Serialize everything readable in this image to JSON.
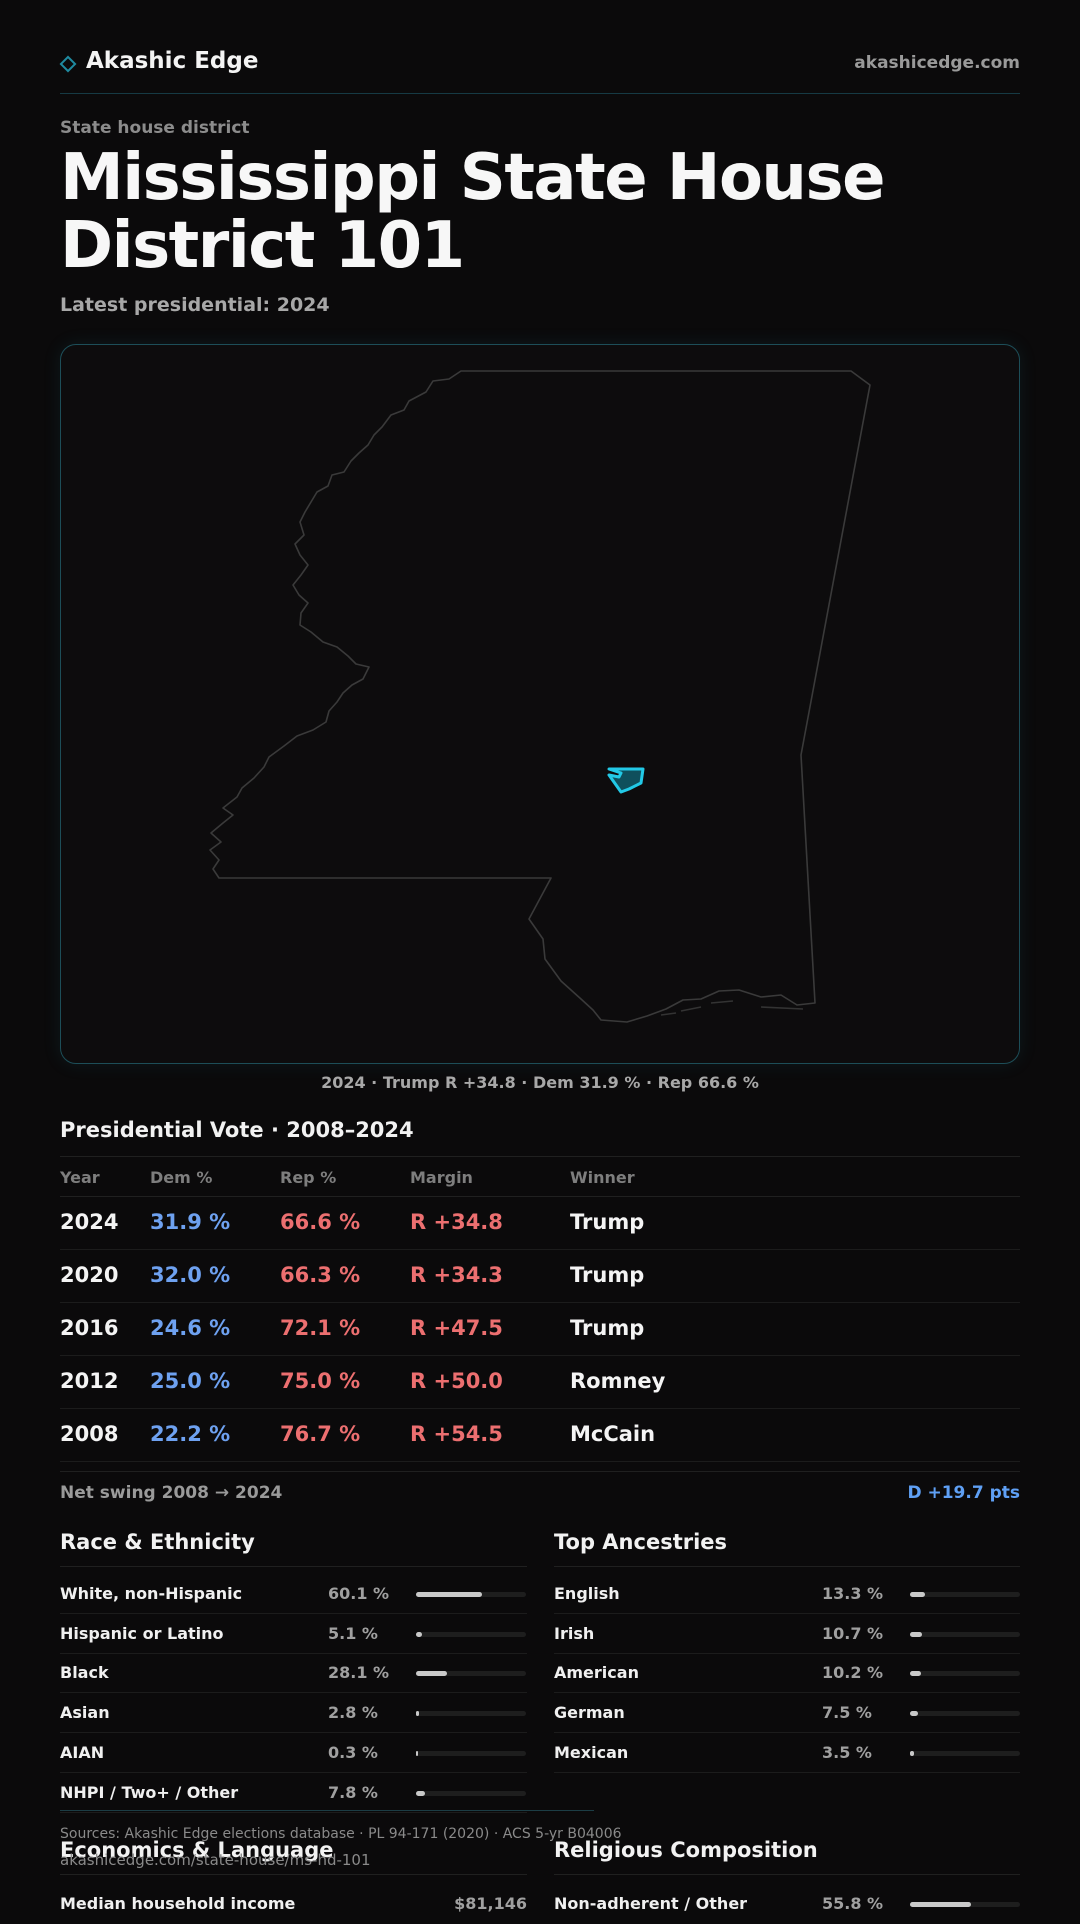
{
  "brand": {
    "name": "Akashic Edge",
    "site": "akashicedge.com"
  },
  "kicker": "State house district",
  "title": "Mississippi State House District 101",
  "subtitle": "Latest presidential: 2024",
  "map_caption": "2024 · Trump R +34.8 · Dem 31.9 % · Rep 66.6 %",
  "vote": {
    "title": "Presidential Vote · 2008–2024",
    "headers": {
      "year": "Year",
      "dem": "Dem %",
      "rep": "Rep %",
      "margin": "Margin",
      "winner": "Winner"
    },
    "rows": [
      {
        "year": "2024",
        "dem": "31.9 %",
        "rep": "66.6 %",
        "margin": "R +34.8",
        "winner": "Trump"
      },
      {
        "year": "2020",
        "dem": "32.0 %",
        "rep": "66.3 %",
        "margin": "R +34.3",
        "winner": "Trump"
      },
      {
        "year": "2016",
        "dem": "24.6 %",
        "rep": "72.1 %",
        "margin": "R +47.5",
        "winner": "Trump"
      },
      {
        "year": "2012",
        "dem": "25.0 %",
        "rep": "75.0 %",
        "margin": "R +50.0",
        "winner": "Romney"
      },
      {
        "year": "2008",
        "dem": "22.2 %",
        "rep": "76.7 %",
        "margin": "R +54.5",
        "winner": "McCain"
      }
    ],
    "swing_label": "Net swing 2008 → 2024",
    "swing_value": "D +19.7 pts"
  },
  "race": {
    "title": "Race & Ethnicity",
    "rows": [
      {
        "label": "White, non-Hispanic",
        "value": "60.1 %",
        "pct": 60.1
      },
      {
        "label": "Hispanic or Latino",
        "value": "5.1 %",
        "pct": 5.1
      },
      {
        "label": "Black",
        "value": "28.1 %",
        "pct": 28.1
      },
      {
        "label": "Asian",
        "value": "2.8 %",
        "pct": 2.8
      },
      {
        "label": "AIAN",
        "value": "0.3 %",
        "pct": 0.3
      },
      {
        "label": "NHPI / Two+ / Other",
        "value": "7.8 %",
        "pct": 7.8
      }
    ]
  },
  "ancestry": {
    "title": "Top Ancestries",
    "rows": [
      {
        "label": "English",
        "value": "13.3 %",
        "pct": 13.3
      },
      {
        "label": "Irish",
        "value": "10.7 %",
        "pct": 10.7
      },
      {
        "label": "American",
        "value": "10.2 %",
        "pct": 10.2
      },
      {
        "label": "German",
        "value": "7.5 %",
        "pct": 7.5
      },
      {
        "label": "Mexican",
        "value": "3.5 %",
        "pct": 3.5
      }
    ]
  },
  "sources": "Sources: Akashic Edge elections database · PL 94-171 (2020) · ACS 5-yr B04006",
  "footer_url": "akashicedge.com/state-house/ms-hd-101",
  "economics": {
    "title": "Economics & Language",
    "rows": [
      {
        "label": "Median household income",
        "value": "$81,146"
      }
    ]
  },
  "religion": {
    "title": "Religious Composition",
    "rows": [
      {
        "label": "Non-adherent / Other",
        "value": "55.8 %",
        "pct": 55.8
      }
    ]
  },
  "colors": {
    "accent": "#22c9e6",
    "dem": "#6ea1f0",
    "rep": "#ec6f70"
  }
}
